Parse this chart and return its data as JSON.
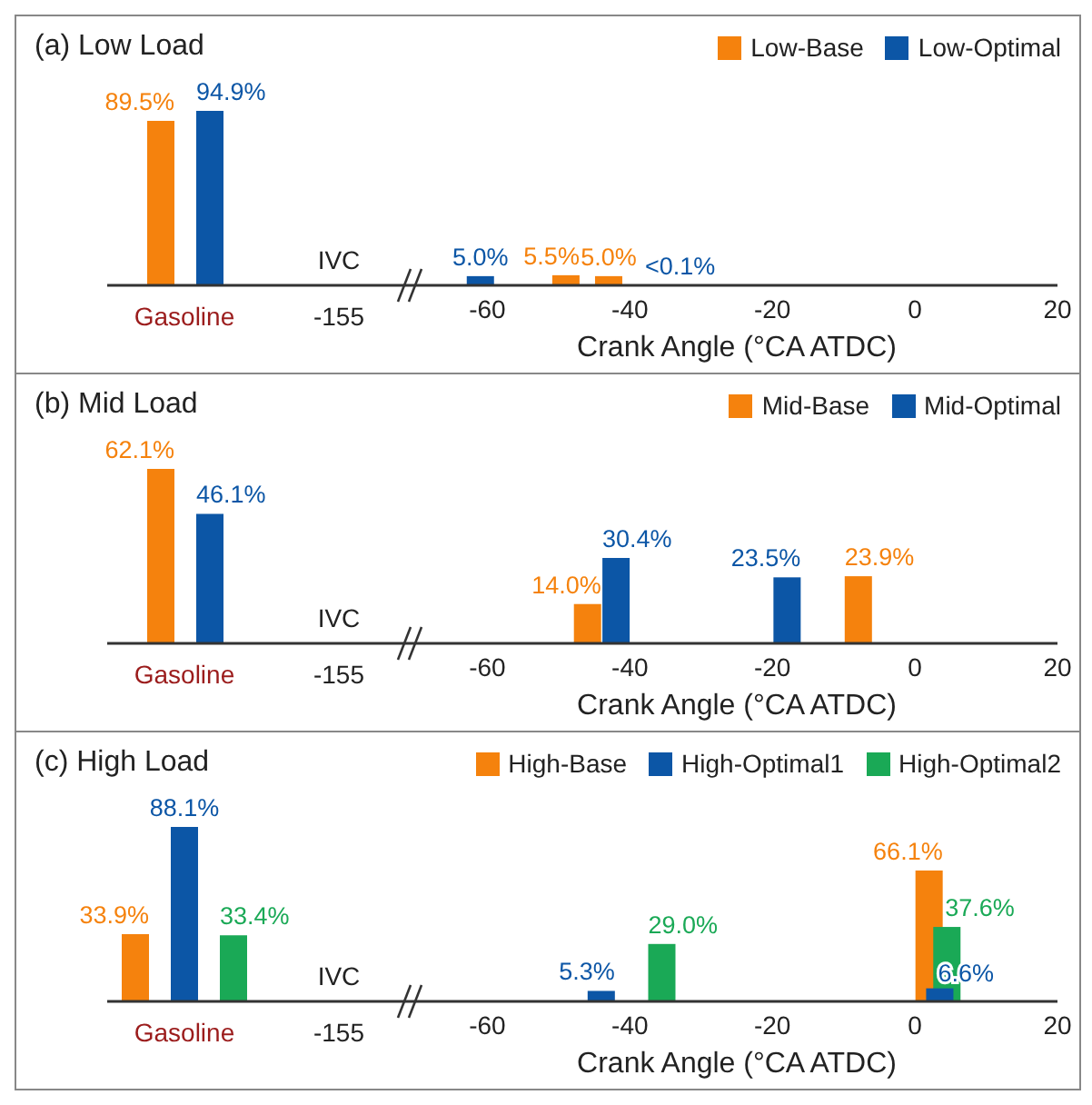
{
  "chart_data": [
    {
      "type": "bar",
      "title": "(a) Low Load",
      "categories": [
        "Gasoline",
        "-155"
      ],
      "tick_labels": "x",
      "annotations": [
        "IVC"
      ],
      "series": [
        {
          "color": "#f5820d",
          "values": [
            89.5,
            null
          ],
          "value_labels": [
            "89.5%",
            null
          ]
        },
        {
          "color": "#0c56a6",
          "values": [
            94.9,
            null
          ],
          "value_labels": [
            "94.9%",
            null
          ]
        }
      ]
    },
    {
      "type": "bar",
      "xlabel": "Crank Angle (°CA ATDC)",
      "xlim": [
        -70,
        20
      ],
      "xticks": [
        -60,
        -40,
        -20,
        0,
        20
      ],
      "tick_labels": "x",
      "legend": "top right",
      "series": [
        {
          "name": "Low-Base",
          "color": "#f5820d",
          "x": [
            -49,
            -43
          ],
          "values": [
            5.5,
            5.0
          ],
          "value_labels": [
            "5.5%",
            "5.0%"
          ]
        },
        {
          "name": "Low-Optimal",
          "color": "#0c56a6",
          "x": [
            -61,
            -36
          ],
          "values": [
            5.0,
            0.05
          ],
          "value_labels": [
            "5.0%",
            "<0.1%"
          ]
        }
      ]
    },
    {
      "type": "bar",
      "title": "(b) Mid Load",
      "categories": [
        "Gasoline",
        "-155"
      ],
      "tick_labels": "x",
      "annotations": [
        "IVC"
      ],
      "series": [
        {
          "color": "#f5820d",
          "values": [
            62.1,
            null
          ],
          "value_labels": [
            "62.1%",
            null
          ]
        },
        {
          "color": "#0c56a6",
          "values": [
            46.1,
            null
          ],
          "value_labels": [
            "46.1%",
            null
          ]
        }
      ]
    },
    {
      "type": "bar",
      "xlabel": "Crank Angle (°CA ATDC)",
      "xlim": [
        -70,
        20
      ],
      "xticks": [
        -60,
        -40,
        -20,
        0,
        20
      ],
      "tick_labels": "x",
      "legend": "top right",
      "series": [
        {
          "name": "Mid-Base",
          "color": "#f5820d",
          "x": [
            -46,
            -8
          ],
          "values": [
            14.0,
            23.9
          ],
          "value_labels": [
            "14.0%",
            "23.9%"
          ]
        },
        {
          "name": "Mid-Optimal",
          "color": "#0c56a6",
          "x": [
            -42,
            -18
          ],
          "values": [
            30.4,
            23.5
          ],
          "value_labels": [
            "30.4%",
            "23.5%"
          ]
        }
      ]
    },
    {
      "type": "bar",
      "title": "(c) High Load",
      "categories": [
        "Gasoline",
        "-155"
      ],
      "tick_labels": "x",
      "annotations": [
        "IVC"
      ],
      "series": [
        {
          "color": "#f5820d",
          "values": [
            33.9,
            null
          ],
          "value_labels": [
            "33.9%",
            null
          ]
        },
        {
          "color": "#0c56a6",
          "values": [
            88.1,
            null
          ],
          "value_labels": [
            "88.1%",
            null
          ]
        },
        {
          "color": "#1aa956",
          "values": [
            33.4,
            null
          ],
          "value_labels": [
            "33.4%",
            null
          ]
        }
      ]
    },
    {
      "type": "bar",
      "xlabel": "Crank Angle (°CA ATDC)",
      "xlim": [
        -70,
        20
      ],
      "xticks": [
        -60,
        -40,
        -20,
        0,
        20
      ],
      "tick_labels": "x",
      "legend": "top right",
      "series": [
        {
          "name": "High-Base",
          "color": "#f5820d",
          "x": [
            2
          ],
          "values": [
            66.1
          ],
          "value_labels": [
            "66.1%"
          ]
        },
        {
          "name": "High-Optimal1",
          "color": "#0c56a6",
          "x": [
            -44,
            3.5
          ],
          "values": [
            5.3,
            6.6
          ],
          "value_labels": [
            "5.3%",
            "6.6%"
          ]
        },
        {
          "name": "High-Optimal2",
          "color": "#1aa956",
          "x": [
            -35.5,
            4.5
          ],
          "values": [
            29.0,
            37.6
          ],
          "value_labels": [
            "29.0%",
            "37.6%"
          ]
        }
      ]
    }
  ]
}
